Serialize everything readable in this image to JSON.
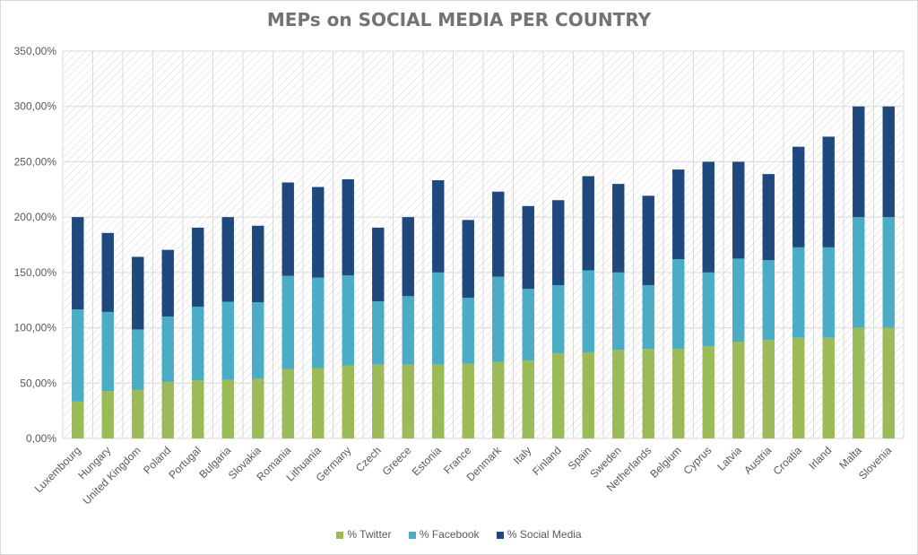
{
  "chart_data": {
    "type": "bar",
    "stacked": true,
    "title": "MEPs on SOCIAL MEDIA PER COUNTRY",
    "xlabel": "",
    "ylabel": "",
    "ylim": [
      0,
      350
    ],
    "yticks": [
      "0,00%",
      "50,00%",
      "100,00%",
      "150,00%",
      "200,00%",
      "250,00%",
      "300,00%",
      "350,00%"
    ],
    "grid": true,
    "legend_position": "bottom",
    "categories": [
      "Luxembourg",
      "Hungary",
      "United Kingdom",
      "Poland",
      "Portugal",
      "Bulgaria",
      "Slovakia",
      "Romania",
      "Lithuania",
      "Germany",
      "Czech",
      "Greece",
      "Estonia",
      "France",
      "Denmark",
      "Italy",
      "Finland",
      "Spain",
      "Sweden",
      "Netherlands",
      "Belgium",
      "Cyprus",
      "Latvia",
      "Austria",
      "Croatia",
      "Irland",
      "Malta",
      "Slovenia"
    ],
    "series": [
      {
        "name": "% Twitter",
        "color": "#9bbb59",
        "values": [
          33.3,
          42.9,
          43.8,
          51.0,
          52.4,
          52.9,
          53.8,
          62.5,
          63.6,
          66.0,
          66.7,
          66.7,
          66.7,
          67.6,
          69.2,
          70.3,
          76.9,
          77.8,
          80.0,
          80.8,
          81.0,
          83.3,
          87.5,
          88.9,
          90.9,
          90.9,
          100.0,
          100.0
        ]
      },
      {
        "name": "% Facebook",
        "color": "#4bacc6",
        "values": [
          83.3,
          71.4,
          54.7,
          59.2,
          66.7,
          70.6,
          69.2,
          84.4,
          81.8,
          81.3,
          57.1,
          61.9,
          83.3,
          59.5,
          76.9,
          64.9,
          61.5,
          74.1,
          70.0,
          57.7,
          81.0,
          66.7,
          75.0,
          72.2,
          81.8,
          81.8,
          100.0,
          100.0
        ]
      },
      {
        "name": "% Social Media",
        "color": "#1f497d",
        "values": [
          83.4,
          71.4,
          65.6,
          60.2,
          71.4,
          76.5,
          69.2,
          84.4,
          81.8,
          86.9,
          66.7,
          71.4,
          83.3,
          70.3,
          76.9,
          74.8,
          76.9,
          85.1,
          80.0,
          80.8,
          81.0,
          100.0,
          87.5,
          77.8,
          90.9,
          100.0,
          100.0,
          100.0
        ]
      }
    ]
  }
}
